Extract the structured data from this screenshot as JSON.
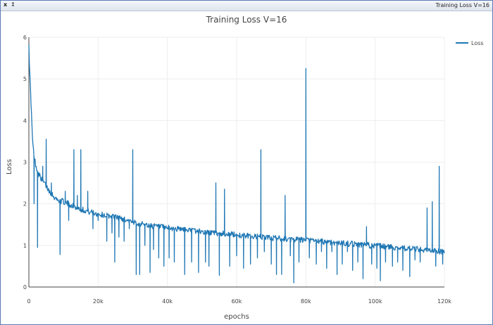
{
  "window": {
    "title": "Training Loss V=16",
    "close_glyph": "x",
    "pin_glyph": "↕"
  },
  "chart_data": {
    "type": "line",
    "title": "Training Loss V=16",
    "xlabel": "epochs",
    "ylabel": "Loss",
    "xlim": [
      0,
      120000
    ],
    "ylim": [
      0,
      6
    ],
    "xticks": [
      0,
      20000,
      40000,
      60000,
      80000,
      100000,
      120000
    ],
    "xtick_labels": [
      "0",
      "20k",
      "40k",
      "60k",
      "80k",
      "100k",
      "120k"
    ],
    "yticks": [
      0,
      1,
      2,
      3,
      4,
      5,
      6
    ],
    "ytick_labels": [
      "0",
      "1",
      "2",
      "3",
      "4",
      "5",
      "6"
    ],
    "grid": true,
    "legend_position": "top-right",
    "series": [
      {
        "name": "Loss",
        "color": "#1f77b4",
        "trend": [
          [
            0,
            5.9
          ],
          [
            200,
            5.2
          ],
          [
            500,
            4.7
          ],
          [
            1000,
            3.6
          ],
          [
            1500,
            3.1
          ],
          [
            2000,
            2.95
          ],
          [
            2500,
            2.75
          ],
          [
            4000,
            2.55
          ],
          [
            6000,
            2.3
          ],
          [
            8000,
            2.1
          ],
          [
            10000,
            2.05
          ],
          [
            12000,
            1.98
          ],
          [
            14000,
            1.9
          ],
          [
            17000,
            1.82
          ],
          [
            20000,
            1.75
          ],
          [
            25000,
            1.68
          ],
          [
            28000,
            1.62
          ],
          [
            30000,
            1.55
          ],
          [
            35000,
            1.47
          ],
          [
            40000,
            1.42
          ],
          [
            50000,
            1.33
          ],
          [
            60000,
            1.25
          ],
          [
            70000,
            1.18
          ],
          [
            80000,
            1.12
          ],
          [
            90000,
            1.06
          ],
          [
            100000,
            0.99
          ],
          [
            110000,
            0.92
          ],
          [
            118000,
            0.86
          ],
          [
            120000,
            0.85
          ]
        ],
        "spikes": [
          [
            1500,
            2.0
          ],
          [
            2500,
            0.95
          ],
          [
            4000,
            2.9
          ],
          [
            5000,
            3.55
          ],
          [
            6500,
            2.5
          ],
          [
            9000,
            0.78
          ],
          [
            10500,
            2.3
          ],
          [
            11500,
            1.6
          ],
          [
            13000,
            3.3
          ],
          [
            14000,
            2.2
          ],
          [
            15000,
            3.3
          ],
          [
            17000,
            2.3
          ],
          [
            18500,
            1.4
          ],
          [
            20000,
            1.6
          ],
          [
            22500,
            1.1
          ],
          [
            24000,
            1.3
          ],
          [
            24800,
            0.6
          ],
          [
            26000,
            1.2
          ],
          [
            27500,
            1.1
          ],
          [
            29000,
            1.4
          ],
          [
            30000,
            3.3
          ],
          [
            31000,
            0.3
          ],
          [
            32000,
            0.3
          ],
          [
            33500,
            1.0
          ],
          [
            35000,
            0.35
          ],
          [
            36000,
            0.9
          ],
          [
            37500,
            0.7
          ],
          [
            39000,
            0.5
          ],
          [
            40500,
            0.7
          ],
          [
            42000,
            0.6
          ],
          [
            45000,
            0.3
          ],
          [
            47000,
            0.6
          ],
          [
            49000,
            0.35
          ],
          [
            51000,
            0.6
          ],
          [
            52000,
            0.5
          ],
          [
            54000,
            2.5
          ],
          [
            55000,
            0.28
          ],
          [
            56500,
            2.35
          ],
          [
            58000,
            0.5
          ],
          [
            60000,
            0.75
          ],
          [
            62000,
            0.45
          ],
          [
            64000,
            0.55
          ],
          [
            66000,
            0.7
          ],
          [
            67000,
            3.3
          ],
          [
            68000,
            0.85
          ],
          [
            70000,
            0.55
          ],
          [
            71500,
            0.3
          ],
          [
            73000,
            0.3
          ],
          [
            74000,
            2.2
          ],
          [
            75500,
            0.75
          ],
          [
            76500,
            0.1
          ],
          [
            78000,
            0.6
          ],
          [
            80000,
            5.25
          ],
          [
            81000,
            0.7
          ],
          [
            83000,
            0.55
          ],
          [
            84500,
            0.85
          ],
          [
            86000,
            0.45
          ],
          [
            87500,
            0.85
          ],
          [
            89000,
            0.3
          ],
          [
            90500,
            0.55
          ],
          [
            92000,
            0.85
          ],
          [
            93500,
            0.4
          ],
          [
            95000,
            0.6
          ],
          [
            96500,
            0.2
          ],
          [
            97500,
            1.45
          ],
          [
            99000,
            0.55
          ],
          [
            100500,
            0.45
          ],
          [
            101500,
            0.15
          ],
          [
            103000,
            0.6
          ],
          [
            105000,
            0.5
          ],
          [
            106500,
            0.6
          ],
          [
            108000,
            0.4
          ],
          [
            110000,
            0.25
          ],
          [
            111500,
            0.65
          ],
          [
            113000,
            0.6
          ],
          [
            115000,
            1.9
          ],
          [
            116500,
            2.05
          ],
          [
            117500,
            0.5
          ],
          [
            118500,
            2.9
          ],
          [
            119500,
            0.55
          ]
        ]
      }
    ]
  }
}
